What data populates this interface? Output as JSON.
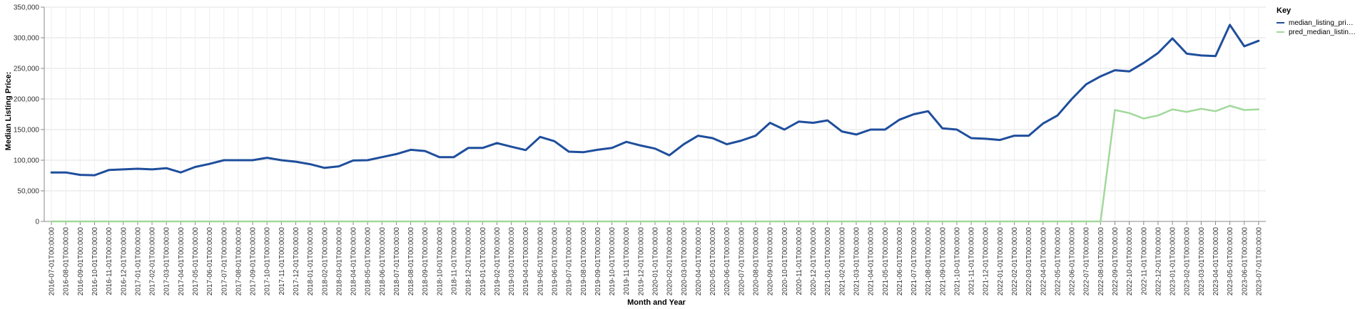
{
  "chart_data": {
    "type": "line",
    "xlabel": "Month and Year",
    "ylabel": "Median Listing Price:",
    "ylim": [
      0,
      350000
    ],
    "yticks": [
      "0",
      "50,000",
      "100,000",
      "150,000",
      "200,000",
      "250,000",
      "300,000",
      "350,000"
    ],
    "grid": true,
    "legend": {
      "title": "Key",
      "placement": "top-right",
      "entries": [
        "median_listing_pri…",
        "pred_median_listin…"
      ]
    },
    "categories": [
      "2016-07-01T00:00:00",
      "2016-08-01T00:00:00",
      "2016-09-01T00:00:00",
      "2016-10-01T00:00:00",
      "2016-11-01T00:00:00",
      "2016-12-01T00:00:00",
      "2017-01-01T00:00:00",
      "2017-02-01T00:00:00",
      "2017-03-01T00:00:00",
      "2017-04-01T00:00:00",
      "2017-05-01T00:00:00",
      "2017-06-01T00:00:00",
      "2017-07-01T00:00:00",
      "2017-08-01T00:00:00",
      "2017-09-01T00:00:00",
      "2017-10-01T00:00:00",
      "2017-11-01T00:00:00",
      "2017-12-01T00:00:00",
      "2018-01-01T00:00:00",
      "2018-02-01T00:00:00",
      "2018-03-01T00:00:00",
      "2018-04-01T00:00:00",
      "2018-05-01T00:00:00",
      "2018-06-01T00:00:00",
      "2018-07-01T00:00:00",
      "2018-08-01T00:00:00",
      "2018-09-01T00:00:00",
      "2018-10-01T00:00:00",
      "2018-11-01T00:00:00",
      "2018-12-01T00:00:00",
      "2019-01-01T00:00:00",
      "2019-02-01T00:00:00",
      "2019-03-01T00:00:00",
      "2019-04-01T00:00:00",
      "2019-05-01T00:00:00",
      "2019-06-01T00:00:00",
      "2019-07-01T00:00:00",
      "2019-08-01T00:00:00",
      "2019-09-01T00:00:00",
      "2019-10-01T00:00:00",
      "2019-11-01T00:00:00",
      "2019-12-01T00:00:00",
      "2020-01-01T00:00:00",
      "2020-02-01T00:00:00",
      "2020-03-01T00:00:00",
      "2020-04-01T00:00:00",
      "2020-05-01T00:00:00",
      "2020-06-01T00:00:00",
      "2020-07-01T00:00:00",
      "2020-08-01T00:00:00",
      "2020-09-01T00:00:00",
      "2020-10-01T00:00:00",
      "2020-11-01T00:00:00",
      "2020-12-01T00:00:00",
      "2021-01-01T00:00:00",
      "2021-02-01T00:00:00",
      "2021-03-01T00:00:00",
      "2021-04-01T00:00:00",
      "2021-05-01T00:00:00",
      "2021-06-01T00:00:00",
      "2021-07-01T00:00:00",
      "2021-08-01T00:00:00",
      "2021-09-01T00:00:00",
      "2021-10-01T00:00:00",
      "2021-11-01T00:00:00",
      "2021-12-01T00:00:00",
      "2022-01-01T00:00:00",
      "2022-02-01T00:00:00",
      "2022-03-01T00:00:00",
      "2022-04-01T00:00:00",
      "2022-05-01T00:00:00",
      "2022-06-01T00:00:00",
      "2022-07-01T00:00:00",
      "2022-08-01T00:00:00",
      "2022-09-01T00:00:00",
      "2022-10-01T00:00:00",
      "2022-11-01T00:00:00",
      "2022-12-01T00:00:00",
      "2023-01-01T00:00:00",
      "2023-02-01T00:00:00",
      "2023-03-01T00:00:00",
      "2023-04-01T00:00:00",
      "2023-05-01T00:00:00",
      "2023-06-01T00:00:00",
      "2023-07-01T00:00:00"
    ],
    "series": [
      {
        "name": "median_listing_pri…",
        "color": "#1f4e9c",
        "values": [
          80000,
          80000,
          76000,
          75500,
          84000,
          85000,
          86000,
          85000,
          87000,
          80000,
          89000,
          94000,
          100000,
          100000,
          100000,
          104000,
          100000,
          97500,
          93500,
          87500,
          90000,
          99500,
          100000,
          105000,
          110000,
          117000,
          115000,
          105000,
          105000,
          120000,
          120000,
          128000,
          122000,
          116500,
          138000,
          131000,
          114000,
          113000,
          117000,
          120000,
          130000,
          124000,
          119000,
          108000,
          126000,
          140000,
          136000,
          126000,
          132000,
          140000,
          161000,
          150000,
          163000,
          161000,
          165000,
          147000,
          142000,
          150000,
          150000,
          166000,
          175000,
          180000,
          152000,
          150000,
          136000,
          135000,
          133000,
          140000,
          140000,
          160000,
          173000,
          200000,
          224000,
          237000,
          247000,
          245000,
          259000,
          275000,
          299000,
          274000,
          271000,
          270000,
          321000,
          286000,
          295000
        ]
      },
      {
        "name": "pred_median_listin…",
        "color": "#a1d99b",
        "values": [
          0,
          0,
          0,
          0,
          0,
          0,
          0,
          0,
          0,
          0,
          0,
          0,
          0,
          0,
          0,
          0,
          0,
          0,
          0,
          0,
          0,
          0,
          0,
          0,
          0,
          0,
          0,
          0,
          0,
          0,
          0,
          0,
          0,
          0,
          0,
          0,
          0,
          0,
          0,
          0,
          0,
          0,
          0,
          0,
          0,
          0,
          0,
          0,
          0,
          0,
          0,
          0,
          0,
          0,
          0,
          0,
          0,
          0,
          0,
          0,
          0,
          0,
          0,
          0,
          0,
          0,
          0,
          0,
          0,
          0,
          0,
          0,
          0,
          0,
          182000,
          177000,
          168000,
          173000,
          183000,
          179000,
          184000,
          180000,
          189000,
          182000,
          183000
        ]
      }
    ]
  }
}
